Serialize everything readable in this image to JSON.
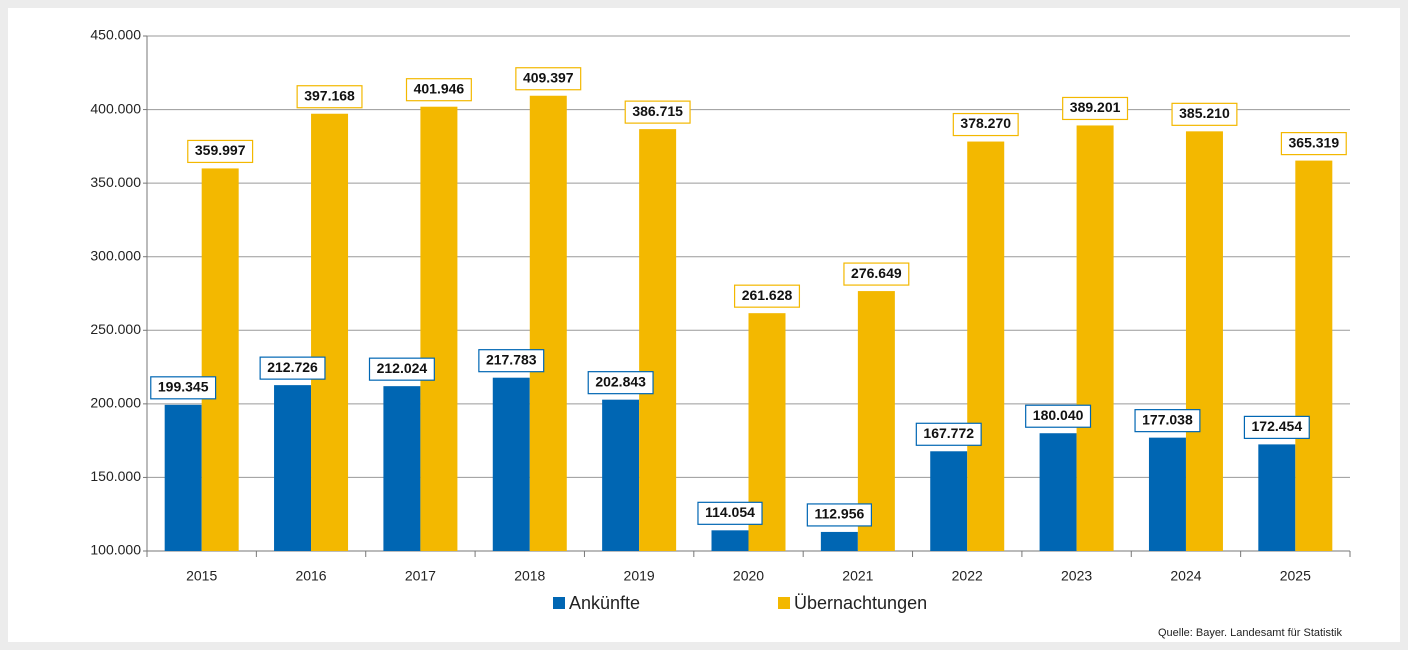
{
  "chart_data": {
    "type": "bar",
    "categories": [
      "2015",
      "2016",
      "2017",
      "2018",
      "2019",
      "2020",
      "2021",
      "2022",
      "2023",
      "2024",
      "2025"
    ],
    "series": [
      {
        "name": "Ankünfte",
        "color": "#0066b3",
        "values": [
          199345,
          212726,
          212024,
          217783,
          202843,
          114054,
          112956,
          167772,
          180040,
          177038,
          172454
        ],
        "value_labels": [
          "199.345",
          "212.726",
          "212.024",
          "217.783",
          "202.843",
          "114.054",
          "112.956",
          "167.772",
          "180.040",
          "177.038",
          "172.454"
        ]
      },
      {
        "name": "Übernachtungen",
        "color": "#f3b800",
        "values": [
          359997,
          397168,
          401946,
          409397,
          386715,
          261628,
          276649,
          378270,
          389201,
          385210,
          365319
        ],
        "value_labels": [
          "359.997",
          "397.168",
          "401.946",
          "409.397",
          "386.715",
          "261.628",
          "276.649",
          "378.270",
          "389.201",
          "385.210",
          "365.319"
        ]
      }
    ],
    "ylim": [
      100000,
      450000
    ],
    "yticks": [
      {
        "value": 100000,
        "label": "100.000"
      },
      {
        "value": 150000,
        "label": "150.000"
      },
      {
        "value": 200000,
        "label": "200.000"
      },
      {
        "value": 250000,
        "label": "250.000"
      },
      {
        "value": 300000,
        "label": "300.000"
      },
      {
        "value": 350000,
        "label": "350.000"
      },
      {
        "value": 400000,
        "label": "400.000"
      },
      {
        "value": 450000,
        "label": "450.000"
      }
    ],
    "grid": true,
    "legend": "bottom",
    "source": "Quelle: Bayer. Landesamt für Statistik"
  }
}
